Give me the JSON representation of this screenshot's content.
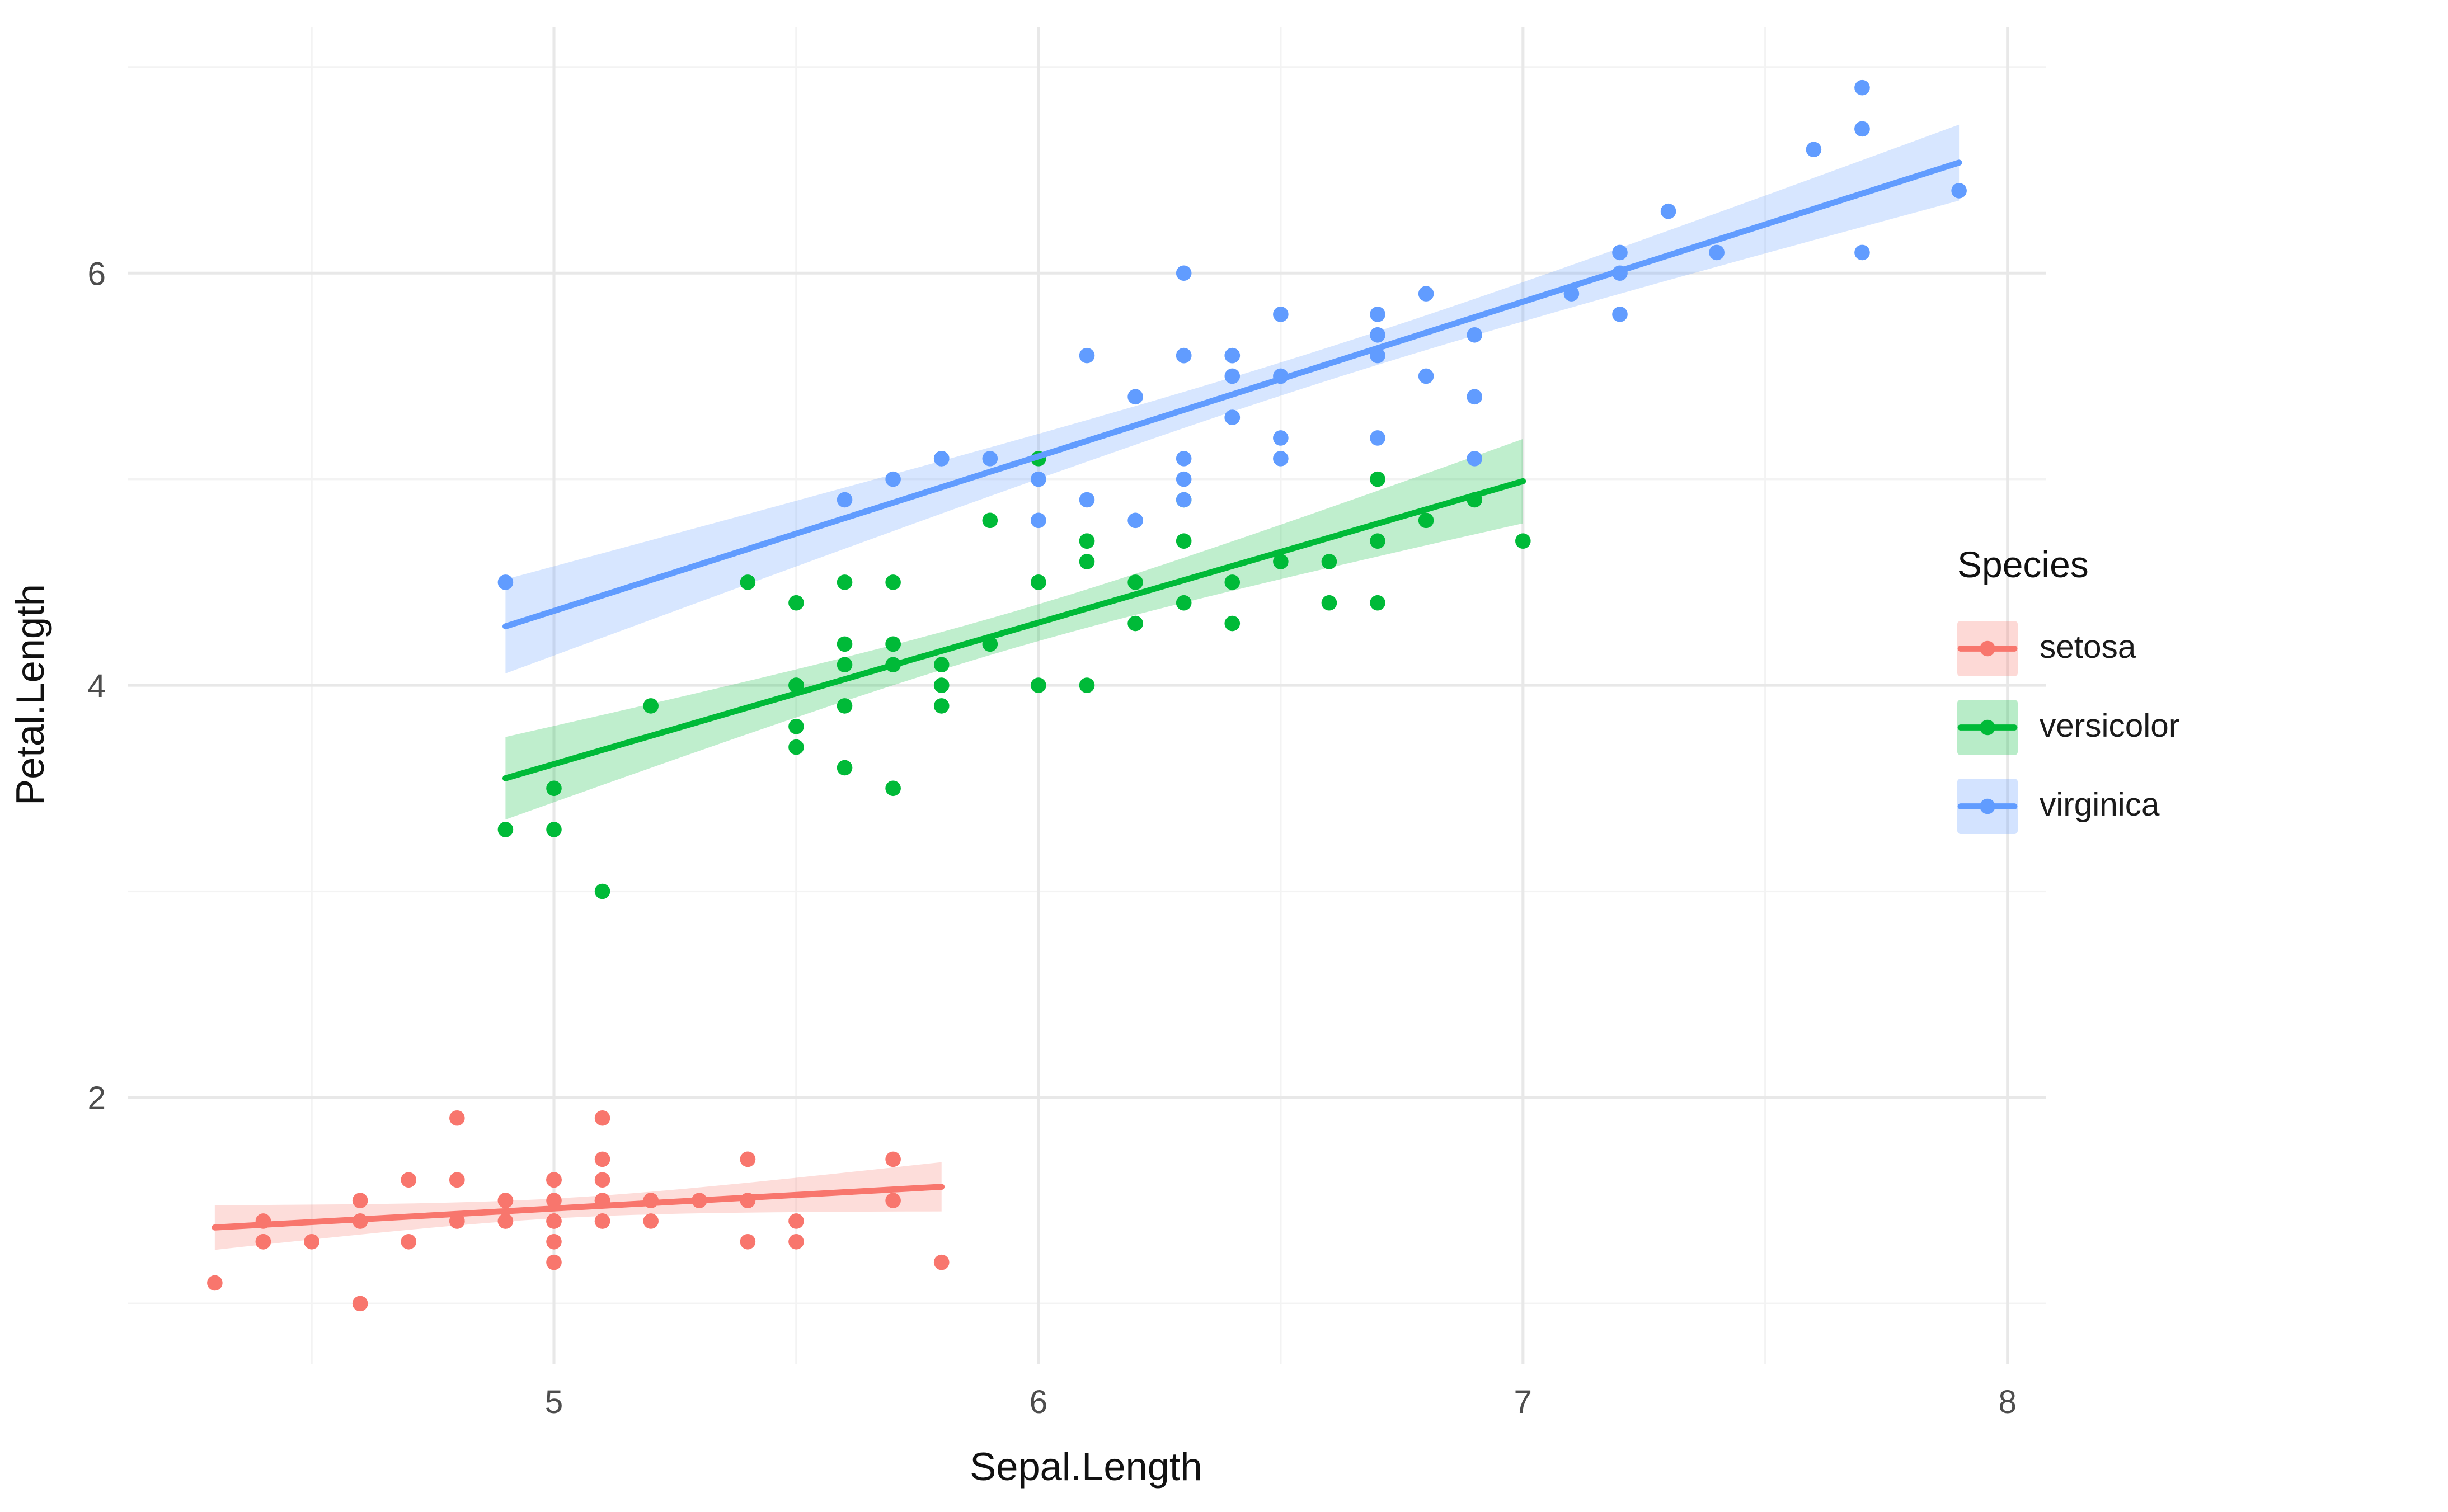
{
  "chart_data": {
    "type": "scatter",
    "title": "",
    "xlabel": "Sepal.Length",
    "ylabel": "Petal.Length",
    "xlim": [
      4.12,
      8.08
    ],
    "ylim": [
      0.705,
      7.195
    ],
    "x_ticks": [
      5,
      6,
      7,
      8
    ],
    "y_ticks": [
      2,
      4,
      6
    ],
    "x_minor": [
      4.5,
      5.5,
      6.5,
      7.5
    ],
    "y_minor": [
      1,
      3,
      5,
      7
    ],
    "grid": "on",
    "legend": {
      "title": "Species",
      "position": "right"
    },
    "smooth": {
      "method": "lm",
      "se": true,
      "ribbon_opacity": 0.25
    },
    "series": [
      {
        "name": "setosa",
        "color": "#F8766D",
        "x": [
          5.1,
          4.9,
          4.7,
          4.6,
          5.0,
          5.4,
          4.6,
          5.0,
          4.4,
          4.9,
          5.4,
          4.8,
          4.8,
          4.3,
          5.8,
          5.7,
          5.4,
          5.1,
          5.7,
          5.1,
          5.4,
          5.1,
          4.6,
          5.1,
          4.8,
          5.0,
          5.0,
          5.2,
          5.2,
          4.7,
          4.8,
          5.4,
          5.2,
          5.5,
          4.9,
          5.0,
          5.5,
          4.9,
          4.4,
          5.1,
          5.0,
          4.5,
          4.4,
          5.0,
          5.1,
          4.8,
          5.1,
          4.6,
          5.3,
          5.0
        ],
        "y": [
          1.4,
          1.4,
          1.3,
          1.5,
          1.4,
          1.7,
          1.4,
          1.5,
          1.4,
          1.5,
          1.5,
          1.6,
          1.4,
          1.1,
          1.2,
          1.5,
          1.3,
          1.4,
          1.7,
          1.5,
          1.7,
          1.5,
          1.0,
          1.7,
          1.9,
          1.6,
          1.6,
          1.5,
          1.4,
          1.6,
          1.6,
          1.5,
          1.5,
          1.4,
          1.5,
          1.2,
          1.3,
          1.4,
          1.3,
          1.5,
          1.3,
          1.3,
          1.3,
          1.6,
          1.9,
          1.4,
          1.6,
          1.4,
          1.5,
          1.4
        ]
      },
      {
        "name": "versicolor",
        "color": "#00BA38",
        "x": [
          7.0,
          6.4,
          6.9,
          5.5,
          6.5,
          5.7,
          6.3,
          4.9,
          6.6,
          5.2,
          5.0,
          5.9,
          6.0,
          6.1,
          5.6,
          6.7,
          5.6,
          5.8,
          6.2,
          5.6,
          5.9,
          6.1,
          6.3,
          6.1,
          6.4,
          6.6,
          6.8,
          6.7,
          6.0,
          5.7,
          5.5,
          5.5,
          5.8,
          6.0,
          5.4,
          6.0,
          6.7,
          6.3,
          5.6,
          5.5,
          5.5,
          6.1,
          5.8,
          5.0,
          5.6,
          5.7,
          5.7,
          6.2,
          5.1,
          5.7
        ],
        "y": [
          4.7,
          4.5,
          4.9,
          4.0,
          4.6,
          4.5,
          4.7,
          3.3,
          4.6,
          3.9,
          3.5,
          4.2,
          4.0,
          4.7,
          3.6,
          4.4,
          4.5,
          4.1,
          4.5,
          3.9,
          4.8,
          4.0,
          4.9,
          4.7,
          4.3,
          4.4,
          4.8,
          5.0,
          4.5,
          3.5,
          3.8,
          3.7,
          3.9,
          5.1,
          4.5,
          4.5,
          4.7,
          4.4,
          4.1,
          4.0,
          4.4,
          4.6,
          4.0,
          3.3,
          4.2,
          4.2,
          4.2,
          4.3,
          3.0,
          4.1
        ]
      },
      {
        "name": "virginica",
        "color": "#619CFF",
        "x": [
          6.3,
          5.8,
          7.1,
          6.3,
          6.5,
          7.6,
          4.9,
          7.3,
          6.7,
          7.2,
          6.5,
          6.4,
          6.8,
          5.7,
          5.8,
          6.4,
          6.5,
          7.7,
          7.7,
          6.0,
          6.9,
          5.6,
          7.7,
          6.3,
          6.7,
          7.2,
          6.2,
          6.1,
          6.4,
          7.2,
          7.4,
          7.9,
          6.4,
          6.3,
          6.1,
          7.7,
          6.3,
          6.4,
          6.0,
          6.9,
          6.7,
          6.9,
          5.8,
          6.8,
          6.7,
          6.7,
          6.3,
          6.5,
          6.2,
          5.9
        ],
        "y": [
          6.0,
          5.1,
          5.9,
          5.6,
          5.8,
          6.6,
          4.5,
          6.3,
          5.8,
          6.1,
          5.1,
          5.3,
          5.5,
          5.0,
          5.1,
          5.3,
          5.5,
          6.7,
          6.9,
          5.0,
          5.7,
          4.9,
          6.7,
          4.9,
          5.7,
          6.0,
          4.8,
          4.9,
          5.6,
          5.8,
          6.1,
          6.4,
          5.6,
          5.1,
          5.6,
          6.1,
          5.6,
          5.5,
          4.8,
          5.4,
          5.6,
          5.1,
          5.1,
          5.9,
          5.7,
          5.2,
          5.0,
          5.2,
          5.4,
          5.1
        ]
      }
    ]
  }
}
